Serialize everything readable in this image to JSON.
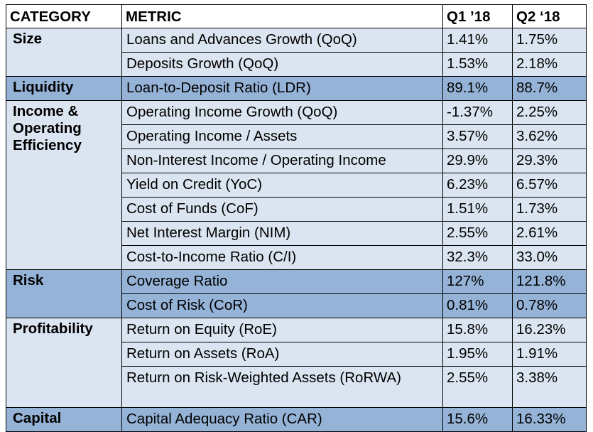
{
  "header": {
    "category": "CATEGORY",
    "metric": "METRIC",
    "q1": "Q1 ’18",
    "q2": "Q2 ‘18"
  },
  "colors": {
    "light_band": "#dbe5f1",
    "dark_band": "#95b3d7",
    "border": "#000000"
  },
  "groups": [
    {
      "category": "Size",
      "shade": "light",
      "rows": [
        {
          "metric": "Loans and Advances Growth (QoQ)",
          "q1": "1.41%",
          "q2": "1.75%"
        },
        {
          "metric": "Deposits Growth (QoQ)",
          "q1": "1.53%",
          "q2": "2.18%"
        }
      ]
    },
    {
      "category": "Liquidity",
      "shade": "dark",
      "rows": [
        {
          "metric": "Loan-to-Deposit Ratio (LDR)",
          "q1": "89.1%",
          "q2": "88.7%"
        }
      ]
    },
    {
      "category": "Income & Operating Efficiency",
      "shade": "light",
      "rows": [
        {
          "metric": "Operating Income Growth (QoQ)",
          "q1": "-1.37%",
          "q2": "2.25%"
        },
        {
          "metric": "Operating Income / Assets",
          "q1": "3.57%",
          "q2": "3.62%"
        },
        {
          "metric": "Non-Interest Income / Operating Income",
          "q1": "29.9%",
          "q2": "29.3%"
        },
        {
          "metric": "Yield on Credit (YoC)",
          "q1": "6.23%",
          "q2": "6.57%"
        },
        {
          "metric": "Cost of Funds (CoF)",
          "q1": "1.51%",
          "q2": "1.73%"
        },
        {
          "metric": "Net Interest Margin (NIM)",
          "q1": "2.55%",
          "q2": "2.61%"
        },
        {
          "metric": "Cost-to-Income Ratio (C/I)",
          "q1": "32.3%",
          "q2": "33.0%"
        }
      ]
    },
    {
      "category": "Risk",
      "shade": "dark",
      "rows": [
        {
          "metric": "Coverage Ratio",
          "q1": "127%",
          "q2": "121.8%"
        },
        {
          "metric": "Cost of Risk (CoR)",
          "q1": "0.81%",
          "q2": "0.78%"
        }
      ]
    },
    {
      "category": "Profitability",
      "shade": "light",
      "rows": [
        {
          "metric": "Return on Equity (RoE)",
          "q1": "15.8%",
          "q2": "16.23%"
        },
        {
          "metric": "Return on Assets (RoA)",
          "q1": "1.95%",
          "q2": "1.91%"
        },
        {
          "metric": "Return on Risk-Weighted Assets (RoRWA)",
          "q1": "2.55%",
          "q2": "3.38%"
        }
      ]
    },
    {
      "category": "Capital",
      "shade": "dark",
      "rows": [
        {
          "metric": "Capital Adequacy Ratio (CAR)",
          "q1": "15.6%",
          "q2": "16.33%"
        }
      ]
    }
  ]
}
